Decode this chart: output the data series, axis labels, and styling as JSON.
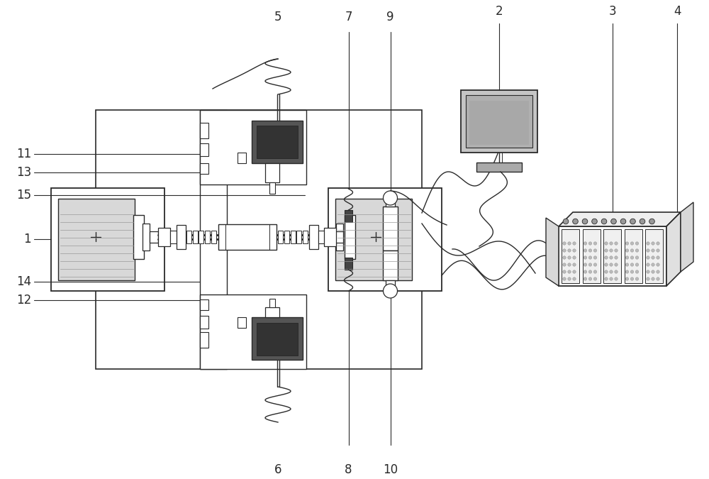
{
  "bg": "#ffffff",
  "lc": "#2a2a2a",
  "gray1": "#888888",
  "gray2": "#aaaaaa",
  "gray3": "#cccccc",
  "gray4": "#444444",
  "motor_fill": "#777777",
  "screen_fill": "#b8b8b8"
}
